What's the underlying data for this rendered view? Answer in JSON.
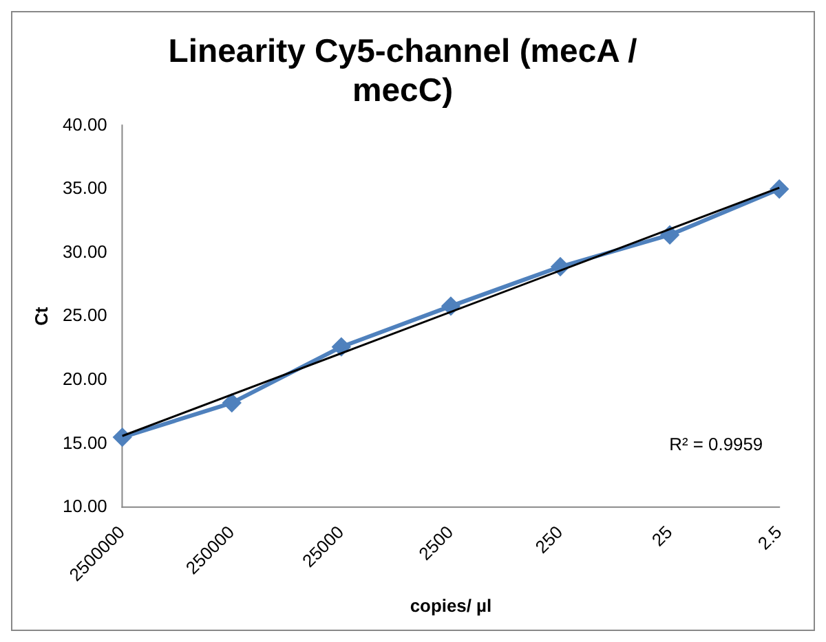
{
  "chart_data": {
    "type": "line",
    "title": "Linearity Cy5-channel (mecA / mecC)",
    "xlabel": "copies/ µl",
    "ylabel": "Ct",
    "categories": [
      "2500000",
      "250000",
      "25000",
      "2500",
      "250",
      "25",
      "2.5"
    ],
    "series": [
      {
        "color": "#4f81bd",
        "values": [
          15.5,
          18.2,
          22.6,
          25.8,
          28.9,
          31.4,
          35.0
        ],
        "marker": "diamond"
      },
      {
        "type": "line",
        "color": "#000000",
        "x": [
          "2500000",
          "2.5"
        ],
        "values": [
          15.6,
          35.1
        ],
        "marker": "none"
      }
    ],
    "ylim": [
      10,
      40
    ],
    "yticks": [
      {
        "value": 10,
        "label": "10.00"
      },
      {
        "value": 15,
        "label": "15.00"
      },
      {
        "value": 20,
        "label": "20.00"
      },
      {
        "value": 25,
        "label": "25.00"
      },
      {
        "value": 30,
        "label": "30.00"
      },
      {
        "value": 35,
        "label": "35.00"
      },
      {
        "value": 40,
        "label": "40.00"
      }
    ],
    "grid": false,
    "legend": false,
    "line_style": "solid",
    "annotations": [
      "R² = 0.9959"
    ]
  }
}
